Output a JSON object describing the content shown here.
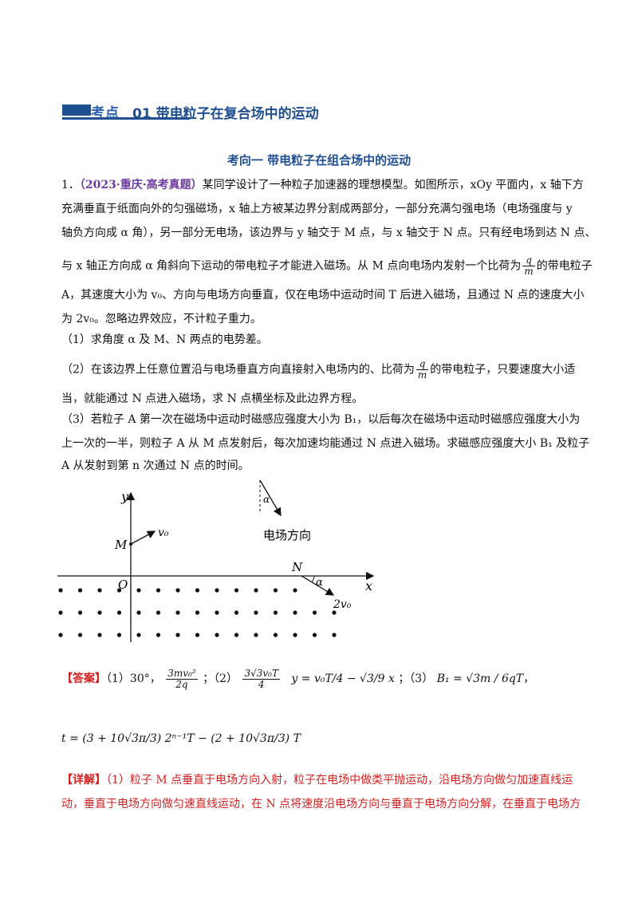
{
  "header": {
    "tag": "考点",
    "number": "01",
    "title": "带电粒子在复合场中的运动"
  },
  "subheader": "考向一  带电粒子在组合场中的运动",
  "question": {
    "number": "1．",
    "source": "（2023·重庆·高考真题）",
    "lines": [
      "某同学设计了一种粒子加速器的理想模型。如图所示，xOy 平面内，x 轴下方",
      "充满垂直于纸面向外的匀强磁场，x 轴上方被某边界分割成两部分，一部分充满匀强电场（电场强度与 y",
      "轴负方向成 α 角），另一部分无电场，该边界与 y 轴交于 M 点，与 x 轴交于 N 点。只有经电场到达 N 点、",
      "与 x 轴正方向成 α 角斜向下运动的带电粒子才能进入磁场。从 M 点向电场内发射一个比荷为",
      "的带电粒子",
      "A，其速度大小为 v₀、方向与电场方向垂直，仅在电场中运动时间 T 后进入磁场，且通过 N 点的速度大小",
      "为 2v₀。忽略边界效应，不计粒子重力。",
      "（1）求角度 α 及 M、N 两点的电势差。",
      "（2）在该边界上任意位置沿与电场垂直方向直接射入电场内的、比荷为",
      "的带电粒子，只要速度大小适",
      "当，就能通过 N 点进入磁场，求 N 点横坐标及此边界方程。",
      "（3）若粒子 A 第一次在磁场中运动时磁感应强度大小为 B₁，以后每次在磁场中运动时磁感应强度大小为",
      "上一次的一半，则粒子 A 从 M 点发射后，每次加速均能通过 N 点进入磁场。求磁感应强度大小 B₁ 及粒子",
      "A 从发射到第 n 次通过 N 点的时间。"
    ],
    "frac_q": "q",
    "frac_m": "m"
  },
  "figure": {
    "y_label": "y",
    "x_label": "x",
    "origin": "O",
    "m_label": "M",
    "n_label": "N",
    "v0_label": "v₀",
    "v2_label": "2v₀",
    "alpha": "α",
    "field_label": "电场方向"
  },
  "answer": {
    "tag": "【答案】",
    "p1": "（1）30°，",
    "p1_frac_num": "3mv₀²",
    "p1_frac_den": "2q",
    "p2": "；（2）",
    "p2_frac_num": "3√3v₀T",
    "p2_frac_den": "4",
    "p2_eq": "y = v₀T/4 − √3/9 x",
    "p3": "；（3）",
    "p3_eq": "B₁ = √3m / 6qT",
    "p3_end": "，",
    "t_eq": "t = (3 + 10√3π/3) 2ⁿ⁻¹T − (2 + 10√3π/3) T"
  },
  "detail": {
    "tag": "【详解】",
    "lines": [
      "（1）粒子 M 点垂直于电场方向入射，粒子在电场中做类平抛运动，沿电场方向做匀加速直线运",
      "动，垂直于电场方向做匀速直线运动，在 N 点将速度沿电场方向与垂直于电场方向分解，在垂直于电场方"
    ]
  },
  "colors": {
    "header_blue": "#1f4e91",
    "source_purple": "#6b3aa0",
    "answer_red": "#d42020"
  }
}
